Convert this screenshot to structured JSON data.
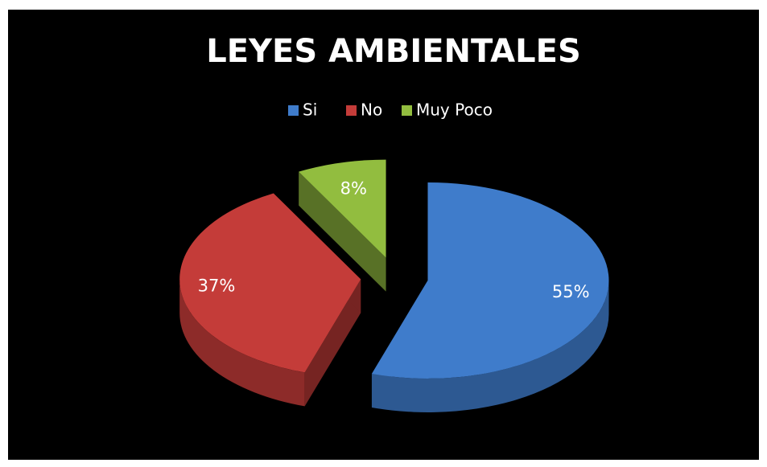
{
  "chart_data": {
    "type": "pie",
    "title": "LEYES AMBIENTALES",
    "categories": [
      "Si",
      "No",
      "Muy Poco"
    ],
    "values": [
      55,
      37,
      8
    ],
    "value_labels": [
      "55%",
      "37%",
      "8%"
    ],
    "colors": [
      "#3f7ccb",
      "#c43c39",
      "#92bd3f"
    ],
    "legend": "top"
  }
}
